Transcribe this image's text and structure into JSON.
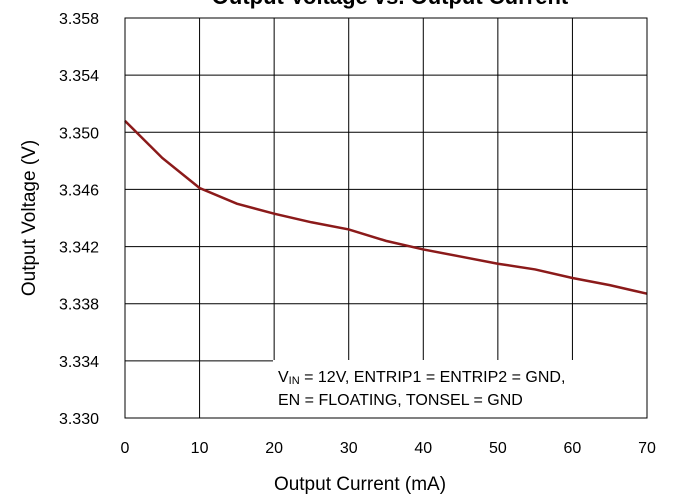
{
  "chart_data": {
    "type": "line",
    "title": "Output Voltage vs. Output Current",
    "xlabel": "Output Current (mA)",
    "ylabel": "Output Voltage (V)",
    "x": [
      0,
      5,
      10,
      15,
      20,
      25,
      30,
      35,
      40,
      45,
      50,
      55,
      60,
      65,
      70
    ],
    "series": [
      {
        "name": "Output Voltage",
        "color": "#8b1a1a",
        "values": [
          3.3508,
          3.3482,
          3.3461,
          3.345,
          3.3443,
          3.3437,
          3.3432,
          3.3424,
          3.3418,
          3.3413,
          3.3408,
          3.3404,
          3.3398,
          3.3393,
          3.3387
        ]
      }
    ],
    "xlim": [
      0,
      70
    ],
    "xticks": [
      0,
      10,
      20,
      30,
      40,
      50,
      60,
      70
    ],
    "ylim": [
      3.33,
      3.358
    ],
    "yticks": [
      {
        "value": 3.33,
        "label": "3.330"
      },
      3.334,
      3.338,
      3.342,
      3.346,
      {
        "value": 3.35,
        "label": "3.350"
      },
      3.354,
      3.358
    ],
    "grid": true,
    "annotation": [
      [
        "V",
        "IN",
        " = 12V, ENTRIP1 = ENTRIP2 = GND,"
      ],
      [
        "EN = FLOATING,  TONSEL = GND"
      ]
    ]
  }
}
